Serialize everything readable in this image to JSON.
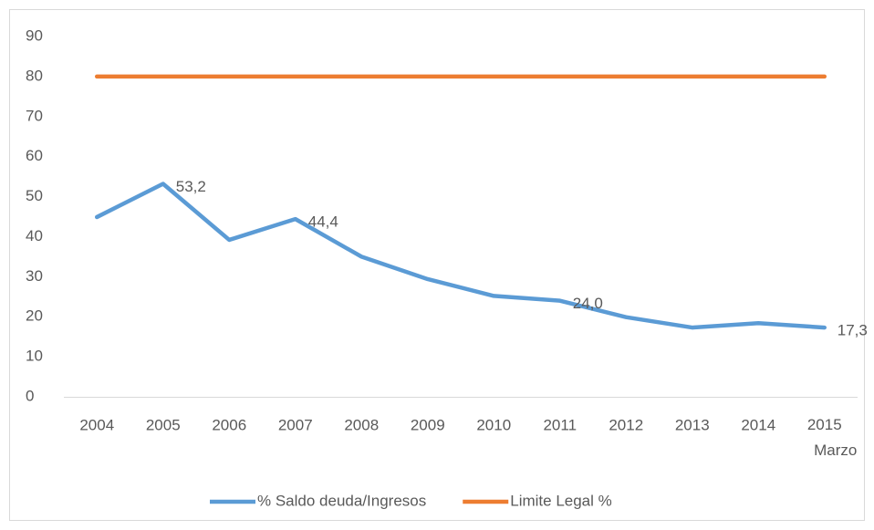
{
  "chart_data": {
    "type": "line",
    "categories": [
      "2004",
      "2005",
      "2006",
      "2007",
      "2008",
      "2009",
      "2010",
      "2011",
      "2012",
      "2013",
      "2014",
      "2015\nMarzo"
    ],
    "series": [
      {
        "name": "% Saldo deuda/Ingresos",
        "color": "#5b9bd5",
        "values": [
          44.9,
          53.2,
          39.2,
          44.4,
          35.0,
          29.4,
          25.2,
          24.0,
          19.9,
          17.3,
          18.4,
          17.3
        ],
        "value_labels": [
          null,
          "53,2",
          null,
          "44,4",
          null,
          null,
          null,
          "24,0",
          null,
          null,
          null,
          "17,3"
        ]
      },
      {
        "name": "Limite Legal %",
        "color": "#ed7d31",
        "values": [
          80,
          80,
          80,
          80,
          80,
          80,
          80,
          80,
          80,
          80,
          80,
          80
        ]
      }
    ],
    "ylim": [
      0,
      90
    ],
    "yticks": [
      0,
      10,
      20,
      30,
      40,
      50,
      60,
      70,
      80,
      90
    ],
    "grid": false,
    "legend": "bottom"
  }
}
